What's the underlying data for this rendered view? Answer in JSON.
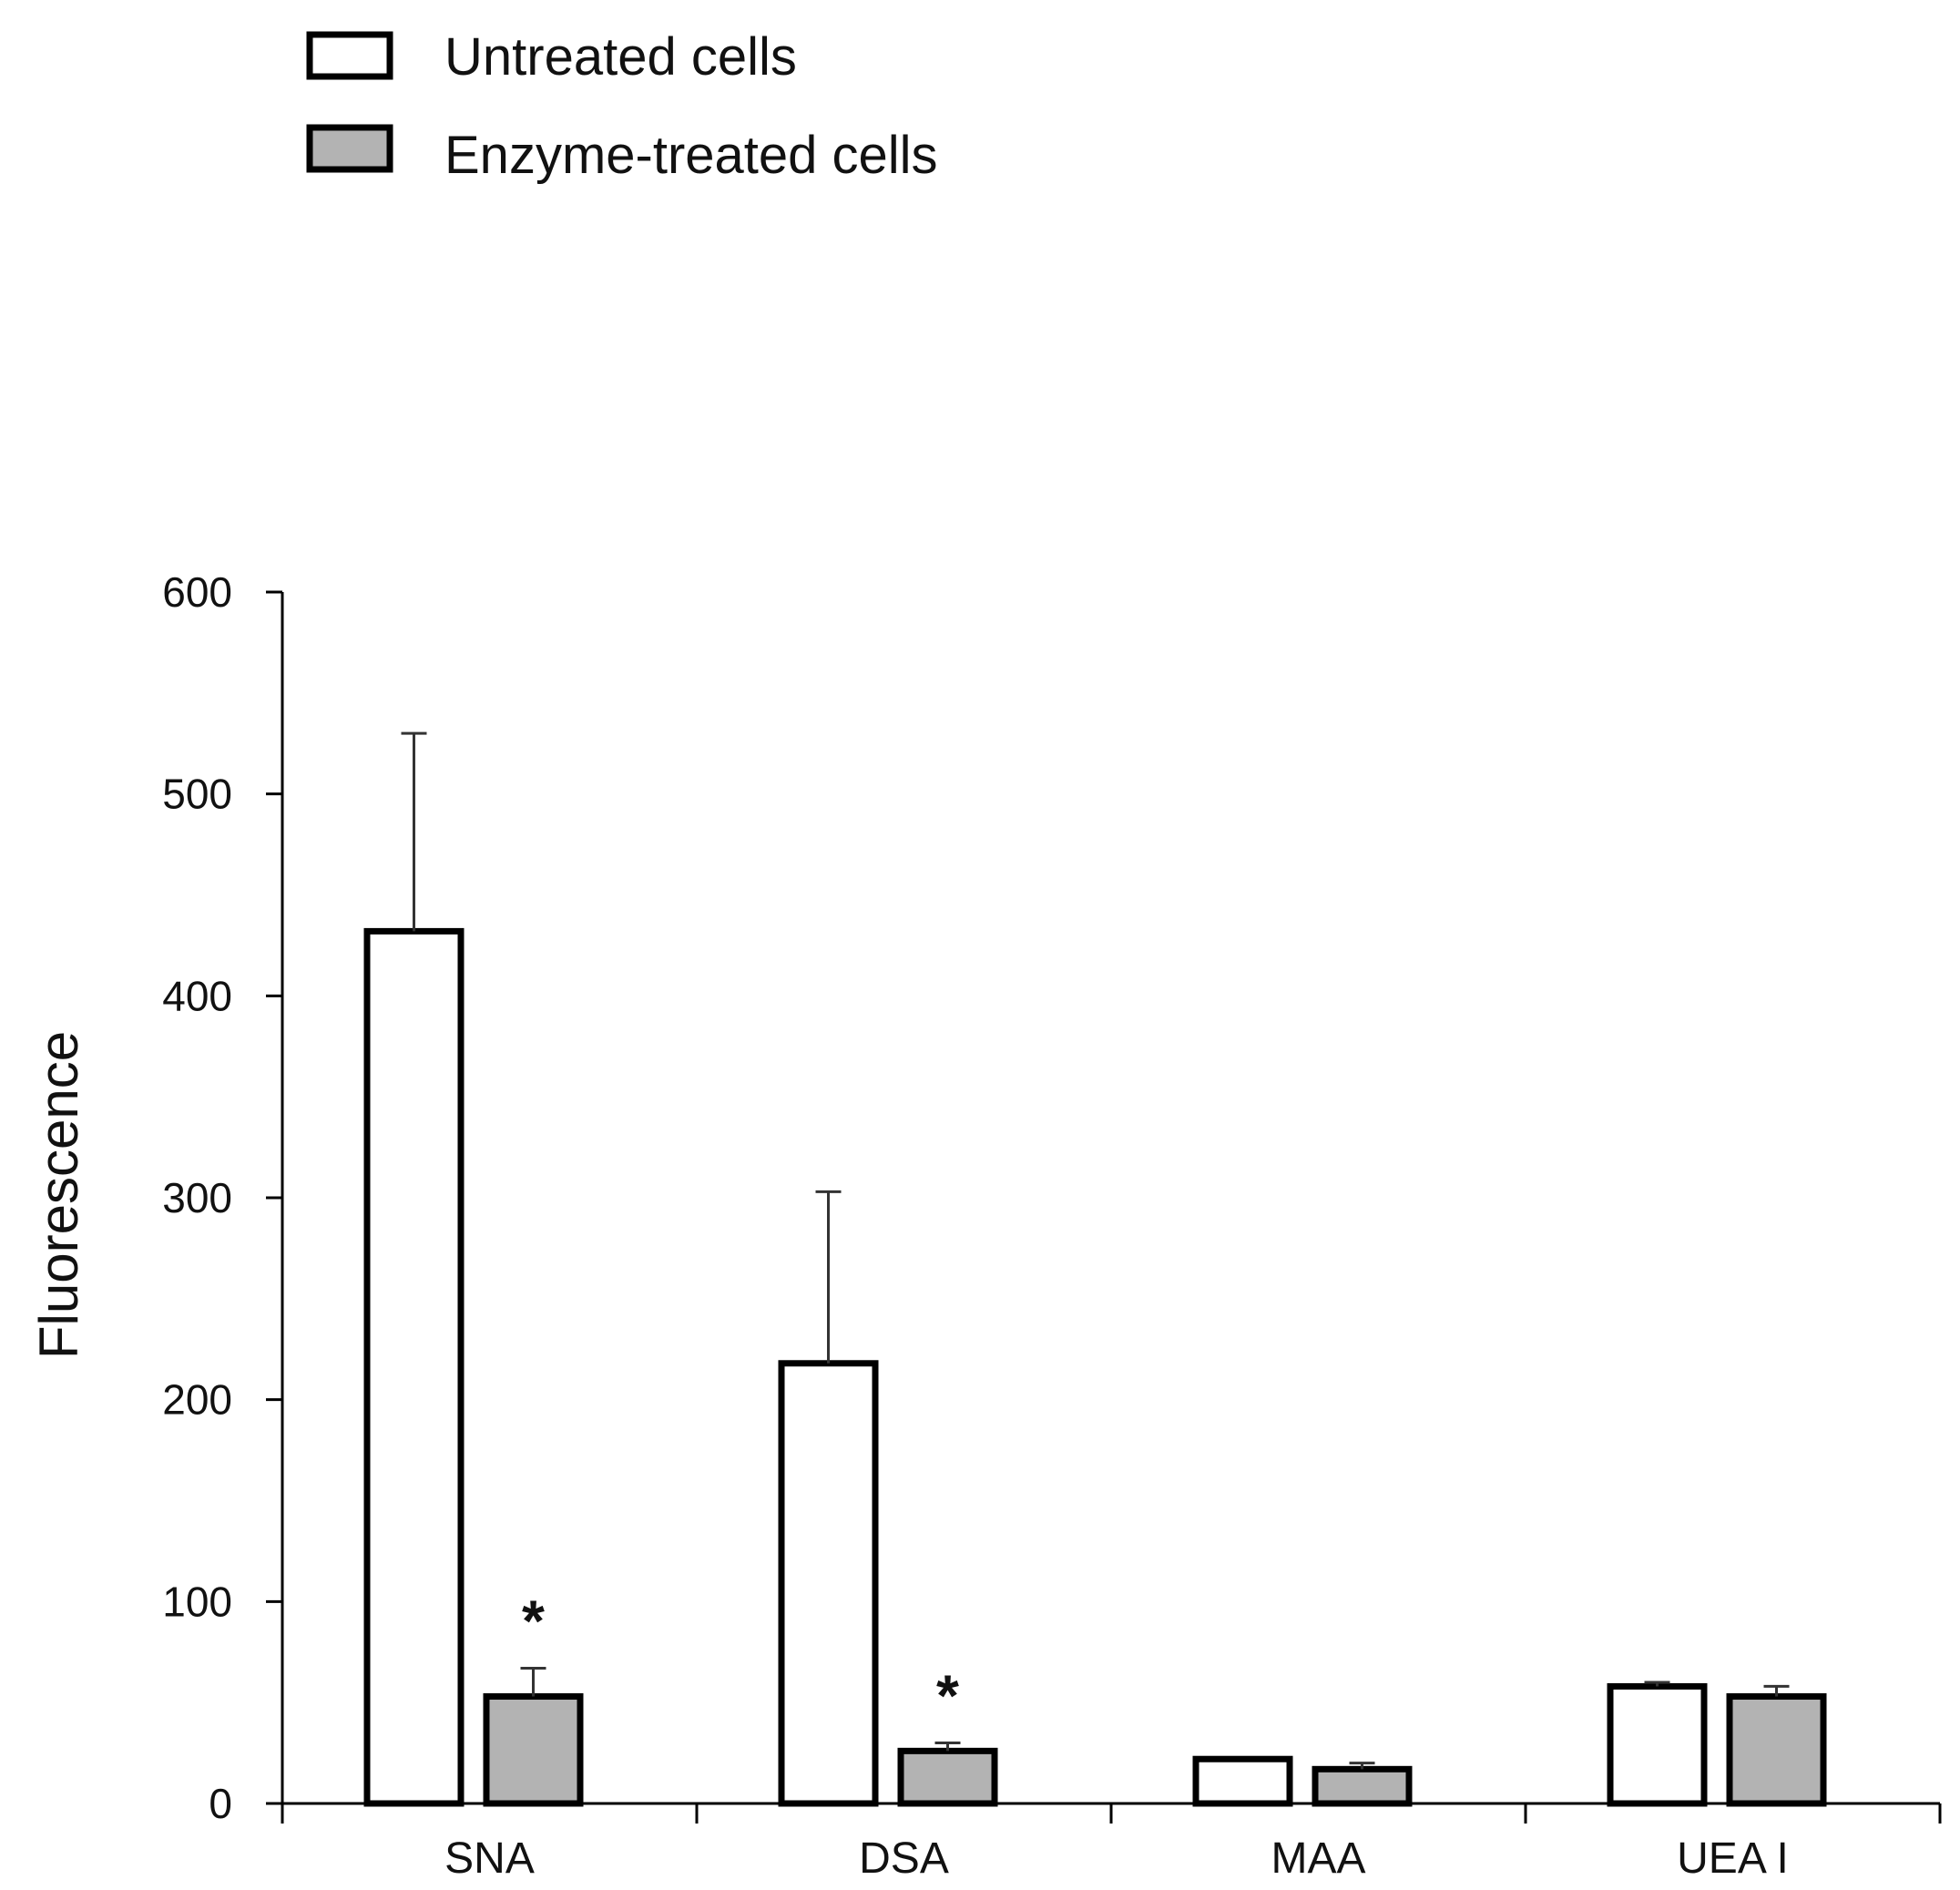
{
  "chart_data": {
    "type": "bar",
    "title": "",
    "xlabel": "",
    "ylabel": "Fluorescence",
    "ylim": [
      0,
      600
    ],
    "yticks": [
      0,
      100,
      200,
      300,
      400,
      500,
      600
    ],
    "ytick_labels": [
      "0",
      "100",
      "200",
      "300",
      "400",
      "500",
      "600"
    ],
    "categories": [
      "SNA",
      "DSA",
      "MAA",
      "UEA I"
    ],
    "series": [
      {
        "name": "Untreated cells",
        "values": [
          432,
          218,
          22,
          58
        ],
        "errors": [
          98,
          85,
          0,
          2
        ],
        "color": "#ffffff"
      },
      {
        "name": "Enzyme-treated cells",
        "values": [
          53,
          26,
          17,
          53
        ],
        "errors": [
          14,
          4,
          3,
          5
        ],
        "color": "#b3b3b3"
      }
    ],
    "annotations": [
      {
        "text": "*",
        "category": "SNA",
        "series": "Enzyme-treated cells"
      },
      {
        "text": "*",
        "category": "DSA",
        "series": "Enzyme-treated cells"
      }
    ],
    "legend_position": "top-left",
    "grid": false
  }
}
